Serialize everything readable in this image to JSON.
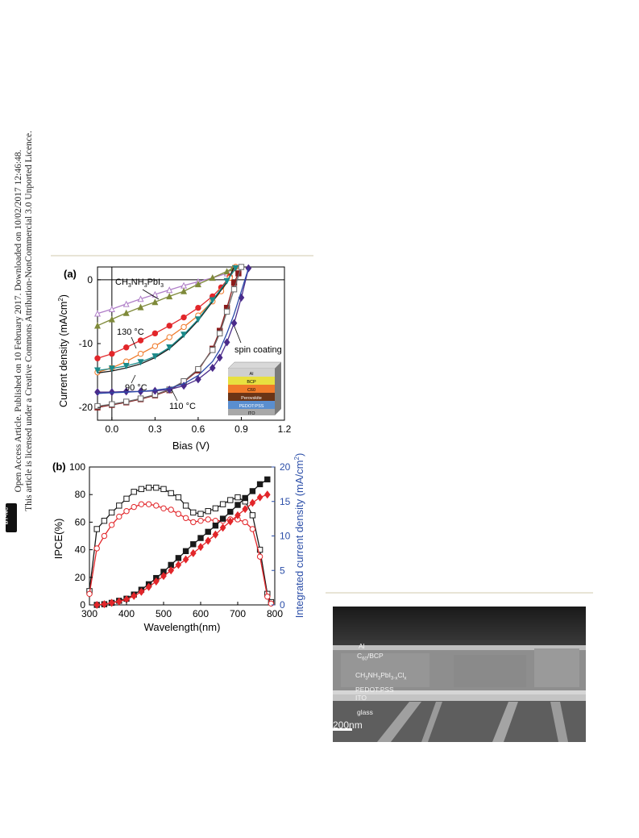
{
  "side_text": {
    "line1": "Open Access Article. Published on 10 February 2017. Downloaded on 10/02/2017 12:46:48.",
    "line2": "This article is licensed under a Creative Commons Attribution-NonCommercial 3.0 Unported Licence.",
    "license_badge": "BY-NC"
  },
  "chart_data": [
    {
      "type": "line",
      "panel": "(a)",
      "xlabel": "Bias (V)",
      "ylabel": "Current density (mA/cm2)",
      "xlim": [
        -0.1,
        1.2
      ],
      "ylim": [
        -22,
        2
      ],
      "xticks": [
        "0.0",
        "0.3",
        "0.6",
        "0.9",
        "1.2"
      ],
      "yticks": [
        "0",
        "-10",
        "-20"
      ],
      "annotations": [
        "CH3NH3PbI3",
        "130 °C",
        "90 °C",
        "110 °C",
        "spin coating"
      ],
      "inset_layers": [
        "Al",
        "BCP",
        "C60",
        "Perovskite",
        "PEDOT:PSS",
        "ITO"
      ],
      "series": [
        {
          "color": "#b07fc8",
          "marker": "open-triangle",
          "x": [
            -0.1,
            0.0,
            0.1,
            0.2,
            0.3,
            0.4,
            0.5,
            0.6,
            0.7,
            0.8,
            0.84
          ],
          "y": [
            -5.3,
            -4.6,
            -3.8,
            -3.0,
            -2.3,
            -1.6,
            -0.9,
            -0.3,
            0.3,
            1.0,
            1.8
          ]
        },
        {
          "color": "#7f8a3a",
          "marker": "filled-triangle",
          "x": [
            -0.1,
            0.0,
            0.1,
            0.2,
            0.3,
            0.4,
            0.5,
            0.6,
            0.7,
            0.8,
            0.84
          ],
          "y": [
            -7.2,
            -6.2,
            -5.2,
            -4.3,
            -3.5,
            -2.6,
            -1.8,
            -0.7,
            0.3,
            1.3,
            1.8
          ]
        },
        {
          "color": "#e2262a",
          "marker": "filled-circle",
          "x": [
            -0.1,
            0.0,
            0.1,
            0.2,
            0.3,
            0.4,
            0.5,
            0.6,
            0.7,
            0.76,
            0.82,
            0.86
          ],
          "y": [
            -12.3,
            -11.6,
            -10.6,
            -9.5,
            -8.4,
            -7.2,
            -5.9,
            -4.4,
            -2.6,
            -1.2,
            0.5,
            2.0
          ]
        },
        {
          "color": "#f07a2a",
          "marker": "open-circle",
          "x": [
            -0.1,
            0.0,
            0.1,
            0.2,
            0.3,
            0.4,
            0.5,
            0.6,
            0.7,
            0.76,
            0.82,
            0.86
          ],
          "y": [
            -14.5,
            -13.8,
            -12.8,
            -11.6,
            -10.4,
            -9.0,
            -7.4,
            -5.6,
            -3.4,
            -1.8,
            0.3,
            2.0
          ]
        },
        {
          "color": "#1a1a1a",
          "marker": "none",
          "x": [
            -0.1,
            0.0,
            0.1,
            0.2,
            0.3,
            0.4,
            0.5,
            0.6,
            0.7,
            0.8,
            0.85
          ],
          "y": [
            -14.6,
            -14.3,
            -13.8,
            -13.2,
            -12.2,
            -10.8,
            -8.8,
            -6.4,
            -3.4,
            -0.4,
            2.0
          ]
        },
        {
          "color": "#1a8a8a",
          "marker": "filled-triangle-down",
          "x": [
            -0.1,
            0.0,
            0.1,
            0.2,
            0.3,
            0.4,
            0.5,
            0.6,
            0.7,
            0.8,
            0.86
          ],
          "y": [
            -14.2,
            -13.9,
            -13.5,
            -12.9,
            -12.0,
            -10.6,
            -8.6,
            -6.2,
            -3.2,
            -0.2,
            1.8
          ]
        },
        {
          "color": "#8b1a1a",
          "marker": "filled-square",
          "x": [
            -0.1,
            0.0,
            0.1,
            0.2,
            0.3,
            0.4,
            0.5,
            0.6,
            0.7,
            0.75,
            0.8,
            0.85,
            0.88
          ],
          "y": [
            -20.0,
            -19.6,
            -19.2,
            -18.7,
            -18.1,
            -17.3,
            -16.0,
            -14.2,
            -10.8,
            -8.0,
            -4.4,
            -0.5,
            1.0
          ]
        },
        {
          "color": "#6a6a6a",
          "marker": "open-square",
          "x": [
            -0.1,
            0.0,
            0.1,
            0.2,
            0.3,
            0.4,
            0.5,
            0.6,
            0.7,
            0.75,
            0.8,
            0.85,
            0.9
          ],
          "y": [
            -19.8,
            -19.5,
            -19.1,
            -18.6,
            -18.0,
            -17.2,
            -15.9,
            -14.0,
            -11.0,
            -8.4,
            -5.0,
            -1.5,
            2.0
          ]
        },
        {
          "color": "#4a2b8a",
          "marker": "filled-diamond",
          "x": [
            -0.1,
            0.0,
            0.1,
            0.2,
            0.3,
            0.4,
            0.5,
            0.6,
            0.7,
            0.75,
            0.8,
            0.85,
            0.9,
            0.95
          ],
          "y": [
            -17.6,
            -17.6,
            -17.5,
            -17.5,
            -17.4,
            -17.2,
            -16.6,
            -15.6,
            -13.8,
            -12.2,
            -9.8,
            -6.8,
            -2.8,
            1.8
          ]
        },
        {
          "color": "#2a49a8",
          "marker": "none",
          "x": [
            -0.1,
            0.0,
            0.1,
            0.2,
            0.3,
            0.4,
            0.5,
            0.6,
            0.7,
            0.75,
            0.8,
            0.85,
            0.9,
            0.95
          ],
          "y": [
            -17.8,
            -17.7,
            -17.6,
            -17.5,
            -17.3,
            -17.0,
            -16.3,
            -15.0,
            -12.8,
            -11.0,
            -8.4,
            -5.4,
            -1.8,
            1.8
          ]
        }
      ]
    },
    {
      "type": "line",
      "panel": "(b)",
      "xlabel": "Wavelength(nm)",
      "ylabel": "IPCE(%)",
      "y2label": "Integrated current density (mA/cm2)",
      "xlim": [
        300,
        800
      ],
      "ylim": [
        0,
        100
      ],
      "y2lim": [
        0,
        20
      ],
      "xticks": [
        "300",
        "400",
        "500",
        "600",
        "700",
        "800"
      ],
      "yticks": [
        "0",
        "20",
        "40",
        "60",
        "80",
        "100"
      ],
      "y2ticks": [
        "0",
        "5",
        "10",
        "15",
        "20"
      ],
      "series": [
        {
          "color": "#1a1a1a",
          "marker": "open-square",
          "axis": "left",
          "x": [
            300,
            320,
            340,
            360,
            380,
            400,
            420,
            440,
            460,
            480,
            500,
            520,
            540,
            560,
            580,
            600,
            620,
            640,
            660,
            680,
            700,
            720,
            740,
            760,
            780,
            790
          ],
          "y": [
            10,
            55,
            61,
            67,
            72,
            77,
            82,
            84,
            85,
            85,
            84,
            81,
            78,
            72,
            67,
            66,
            68,
            70,
            73,
            76,
            78,
            75,
            65,
            40,
            8,
            2
          ]
        },
        {
          "color": "#e2262a",
          "marker": "open-circle",
          "axis": "left",
          "x": [
            300,
            320,
            340,
            360,
            380,
            400,
            420,
            440,
            460,
            480,
            500,
            520,
            540,
            560,
            580,
            600,
            620,
            640,
            660,
            680,
            700,
            720,
            740,
            760,
            780,
            790
          ],
          "y": [
            8,
            41,
            50,
            58,
            64,
            68,
            71,
            73,
            73,
            72,
            70,
            69,
            66,
            63,
            60,
            61,
            62,
            61,
            61,
            62,
            62,
            60,
            55,
            35,
            6,
            1
          ]
        },
        {
          "color": "#1a1a1a",
          "marker": "filled-square",
          "axis": "right",
          "x": [
            320,
            340,
            360,
            380,
            400,
            420,
            440,
            460,
            480,
            500,
            520,
            540,
            560,
            580,
            600,
            620,
            640,
            660,
            680,
            700,
            720,
            740,
            760,
            780
          ],
          "y": [
            0.0,
            0.1,
            0.3,
            0.6,
            0.9,
            1.5,
            2.2,
            3.0,
            3.9,
            4.8,
            5.8,
            6.8,
            7.8,
            8.8,
            9.7,
            10.6,
            11.5,
            12.5,
            13.5,
            14.5,
            15.5,
            16.5,
            17.5,
            18.2
          ]
        },
        {
          "color": "#e2262a",
          "marker": "filled-diamond",
          "axis": "right",
          "x": [
            320,
            340,
            360,
            380,
            400,
            420,
            440,
            460,
            480,
            500,
            520,
            540,
            560,
            580,
            600,
            620,
            640,
            660,
            680,
            700,
            720,
            740,
            760,
            780
          ],
          "y": [
            0.0,
            0.1,
            0.3,
            0.5,
            0.8,
            1.3,
            1.9,
            2.6,
            3.4,
            4.2,
            5.0,
            5.8,
            6.6,
            7.5,
            8.4,
            9.3,
            10.2,
            11.2,
            12.1,
            13.0,
            13.9,
            14.8,
            15.6,
            16.0
          ]
        }
      ]
    }
  ],
  "sem_image": {
    "labels": [
      "Al",
      "C60/BCP",
      "CH3NH3PbI3-xClx",
      "PEDOT:PSS",
      "ITO",
      "glass"
    ],
    "scale_bar": "200nm"
  }
}
